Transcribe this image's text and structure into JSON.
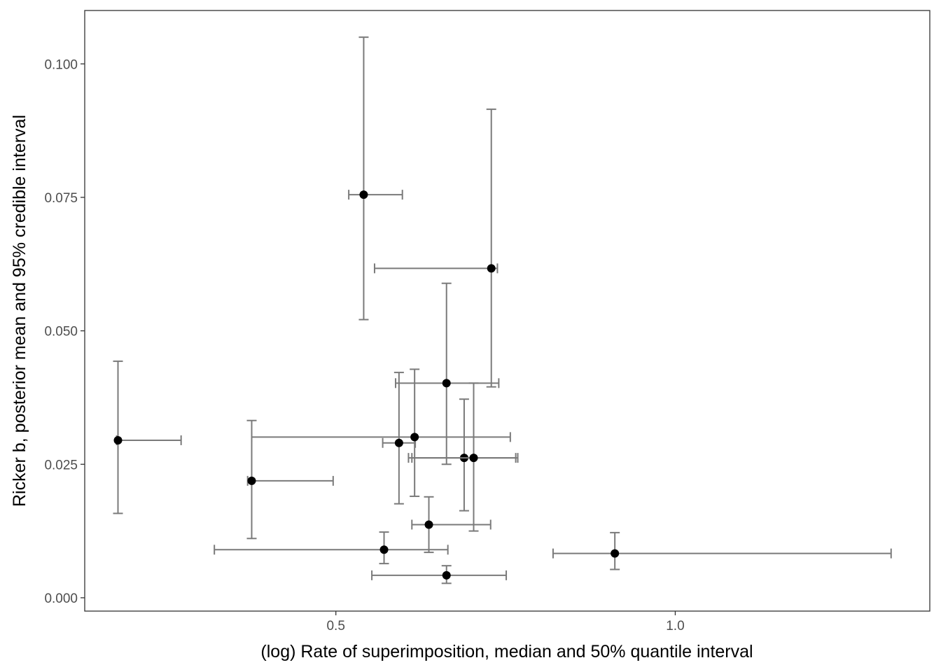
{
  "chart_data": {
    "type": "scatter",
    "title": "",
    "xlabel": "(log) Rate of superimposition, median and 50% quantile interval",
    "ylabel": "Ricker b, posterior mean and 95% credible interval",
    "xlim": [
      0.13,
      1.375
    ],
    "ylim": [
      -0.0025,
      0.11
    ],
    "x_ticks": [
      0.5,
      1.0
    ],
    "x_tick_labels": [
      "0.5",
      "1.0"
    ],
    "y_ticks": [
      0.0,
      0.025,
      0.05,
      0.075,
      0.1
    ],
    "y_tick_labels": [
      "0.000",
      "0.025",
      "0.050",
      "0.075",
      "0.100"
    ],
    "grid": false,
    "legend": "none",
    "colors": {
      "point": "#000000",
      "errorbar": "#7a7a7a",
      "frame": "#333333"
    },
    "points": [
      {
        "x": 0.179,
        "y": 0.0295,
        "x_lo": 0.177,
        "x_hi": 0.272,
        "y_lo": 0.0158,
        "y_hi": 0.0443
      },
      {
        "x": 0.376,
        "y": 0.0219,
        "x_lo": 0.37,
        "x_hi": 0.496,
        "y_lo": 0.0111,
        "y_hi": 0.0332
      },
      {
        "x": 0.541,
        "y": 0.0755,
        "x_lo": 0.519,
        "x_hi": 0.598,
        "y_lo": 0.0521,
        "y_hi": 0.105
      },
      {
        "x": 0.571,
        "y": 0.009,
        "x_lo": 0.321,
        "x_hi": 0.665,
        "y_lo": 0.0064,
        "y_hi": 0.0123
      },
      {
        "x": 0.593,
        "y": 0.029,
        "x_lo": 0.569,
        "x_hi": 0.617,
        "y_lo": 0.0176,
        "y_hi": 0.0422
      },
      {
        "x": 0.616,
        "y": 0.0301,
        "x_lo": 0.376,
        "x_hi": 0.757,
        "y_lo": 0.019,
        "y_hi": 0.0428
      },
      {
        "x": 0.637,
        "y": 0.0137,
        "x_lo": 0.612,
        "x_hi": 0.728,
        "y_lo": 0.0085,
        "y_hi": 0.0189
      },
      {
        "x": 0.663,
        "y": 0.0402,
        "x_lo": 0.588,
        "x_hi": 0.74,
        "y_lo": 0.025,
        "y_hi": 0.0589
      },
      {
        "x": 0.663,
        "y": 0.0042,
        "x_lo": 0.553,
        "x_hi": 0.751,
        "y_lo": 0.0027,
        "y_hi": 0.006
      },
      {
        "x": 0.689,
        "y": 0.0262,
        "x_lo": 0.607,
        "x_hi": 0.765,
        "y_lo": 0.0163,
        "y_hi": 0.0372
      },
      {
        "x": 0.703,
        "y": 0.0262,
        "x_lo": 0.612,
        "x_hi": 0.768,
        "y_lo": 0.0125,
        "y_hi": 0.0402
      },
      {
        "x": 0.729,
        "y": 0.0617,
        "x_lo": 0.557,
        "x_hi": 0.738,
        "y_lo": 0.0395,
        "y_hi": 0.0915
      },
      {
        "x": 0.911,
        "y": 0.0083,
        "x_lo": 0.82,
        "x_hi": 1.318,
        "y_lo": 0.0053,
        "y_hi": 0.0122
      }
    ]
  }
}
